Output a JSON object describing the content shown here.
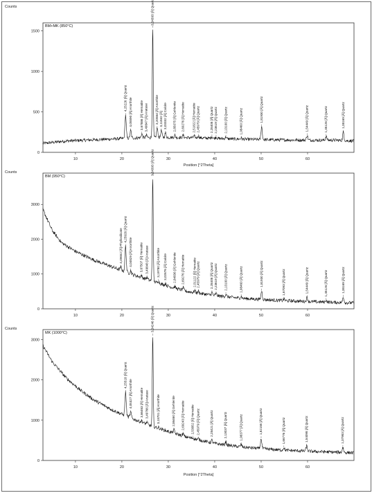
{
  "chart_data": [
    {
      "type": "line",
      "panel_label": "BM+MK (850°C)",
      "ylabel": "Counts",
      "xlabel": "Position [°2Theta]",
      "xlim": [
        3,
        70
      ],
      "ylim": [
        0,
        1600
      ],
      "yticks": [
        0,
        500,
        1000,
        1500
      ],
      "xticks": [
        10,
        20,
        30,
        40,
        50,
        60
      ],
      "baseline": [
        [
          3,
          110
        ],
        [
          8,
          140
        ],
        [
          12,
          150
        ],
        [
          16,
          160
        ],
        [
          20,
          170
        ],
        [
          24,
          180
        ],
        [
          30,
          185
        ],
        [
          36,
          180
        ],
        [
          44,
          165
        ],
        [
          52,
          155
        ],
        [
          60,
          150
        ],
        [
          66,
          150
        ],
        [
          70,
          140
        ]
      ],
      "peaks": [
        {
          "x": 20.8,
          "y": 460,
          "w": 0.14,
          "label": "4,25226 [Å]  Quartz"
        },
        {
          "x": 21.9,
          "y": 270,
          "w": 0.14,
          "label": "4,05590 [Å]  Anorthite"
        },
        {
          "x": 24.3,
          "y": 230,
          "w": 0.14,
          "label": "3,67886 [Å]  Hematite"
        },
        {
          "x": 25.3,
          "y": 210,
          "w": 0.14,
          "label": "3,49847 [Å]  Anatase"
        },
        {
          "x": 26.65,
          "y": 1540,
          "w": 0.1,
          "label": "3,34393 [Å]  Quartz"
        },
        {
          "x": 27.6,
          "y": 300,
          "w": 0.14,
          "label": "3,20584 [Å]  Anorthite"
        },
        {
          "x": 28.5,
          "y": 270,
          "w": 0.14,
          "label": "3,11842 [Å]"
        },
        {
          "x": 29.4,
          "y": 240,
          "w": 0.14,
          "label": "3,03332 [Å]  Calcite"
        },
        {
          "x": 31.4,
          "y": 210,
          "w": 0.14,
          "label": "2,85075 [Å]  Gehlenite"
        },
        {
          "x": 33.2,
          "y": 210,
          "w": 0.14,
          "label": "2,69276 [Å]  Hematite"
        },
        {
          "x": 35.6,
          "y": 200,
          "w": 0.14,
          "label": "2,51822 [Å]  Hematite"
        },
        {
          "x": 36.5,
          "y": 200,
          "w": 0.14,
          "label": "2,45979 [Å]  Quartz"
        },
        {
          "x": 39.4,
          "y": 195,
          "w": 0.14,
          "label": "2,28408 [Å]  Quartz"
        },
        {
          "x": 40.3,
          "y": 190,
          "w": 0.14,
          "label": "2,23619 [Å]  Quartz"
        },
        {
          "x": 42.4,
          "y": 190,
          "w": 0.14,
          "label": "2,13100 [Å]  Quartz"
        },
        {
          "x": 45.7,
          "y": 175,
          "w": 0.14,
          "label": "1,98460 [Å]  Quartz"
        },
        {
          "x": 50.1,
          "y": 320,
          "w": 0.14,
          "label": "1,81930 [Å]  Quartz"
        },
        {
          "x": 59.9,
          "y": 210,
          "w": 0.14,
          "label": "1,54449 [Å]  Quartz"
        },
        {
          "x": 64.0,
          "y": 200,
          "w": 0.14,
          "label": "1,45126 [Å]  Quartz"
        },
        {
          "x": 67.7,
          "y": 250,
          "w": 0.14,
          "label": "1,38169 [Å]  Quartz"
        }
      ]
    },
    {
      "type": "line",
      "panel_label": "BM (950°C)",
      "ylabel": "Counts",
      "xlabel": "",
      "xlim": [
        3,
        70
      ],
      "ylim": [
        0,
        3900
      ],
      "yticks": [
        0,
        1000,
        2000,
        3000
      ],
      "xticks": [
        10,
        20,
        30,
        40,
        50,
        60
      ],
      "baseline": [
        [
          3,
          2850
        ],
        [
          5,
          2250
        ],
        [
          7,
          1900
        ],
        [
          10,
          1650
        ],
        [
          14,
          1400
        ],
        [
          18,
          1200
        ],
        [
          22,
          1000
        ],
        [
          26,
          820
        ],
        [
          30,
          650
        ],
        [
          34,
          500
        ],
        [
          40,
          380
        ],
        [
          46,
          300
        ],
        [
          54,
          240
        ],
        [
          62,
          200
        ],
        [
          70,
          170
        ]
      ],
      "peaks": [
        {
          "x": 19.8,
          "y": 1200,
          "w": 0.14,
          "label": "4,49652 [Å]  Phyllosilicate"
        },
        {
          "x": 20.8,
          "y": 1800,
          "w": 0.14,
          "label": "4,25926 [Å]  Quartz"
        },
        {
          "x": 21.9,
          "y": 1100,
          "w": 0.14,
          "label": "4,04829 [Å]  Anorthite"
        },
        {
          "x": 24.2,
          "y": 950,
          "w": 0.14,
          "label": "3,67507 [Å]  Hematite"
        },
        {
          "x": 25.4,
          "y": 900,
          "w": 0.14,
          "label": "3,49848 [Å]  Anatase"
        },
        {
          "x": 26.65,
          "y": 3850,
          "w": 0.1,
          "label": "3,34393 [Å]  Quartz"
        },
        {
          "x": 27.9,
          "y": 800,
          "w": 0.14,
          "label": "3,19780 [Å]  Anorthite"
        },
        {
          "x": 29.4,
          "y": 720,
          "w": 0.14,
          "label": "3,02676 [Å]  Calcite"
        },
        {
          "x": 31.4,
          "y": 640,
          "w": 0.14,
          "label": "2,84836 [Å]  Gehlenite"
        },
        {
          "x": 33.2,
          "y": 600,
          "w": 0.14,
          "label": "2,69276 [Å]  Hematite"
        },
        {
          "x": 35.7,
          "y": 520,
          "w": 0.14,
          "label": "2,51122 [Å]  Hematite"
        },
        {
          "x": 36.5,
          "y": 500,
          "w": 0.14,
          "label": "2,45979 [Å]  Quartz"
        },
        {
          "x": 39.4,
          "y": 470,
          "w": 0.14,
          "label": "2,28408 [Å]  Quartz"
        },
        {
          "x": 40.3,
          "y": 440,
          "w": 0.14,
          "label": "2,23619 [Å]  Quartz"
        },
        {
          "x": 42.4,
          "y": 420,
          "w": 0.14,
          "label": "2,13100 [Å]  Quartz"
        },
        {
          "x": 45.7,
          "y": 360,
          "w": 0.14,
          "label": "1,98460 [Å]  Quartz"
        },
        {
          "x": 50.1,
          "y": 520,
          "w": 0.14,
          "label": "1,81930 [Å]  Quartz"
        },
        {
          "x": 54.9,
          "y": 280,
          "w": 0.14,
          "label": "1,67093 [Å]  Quartz"
        },
        {
          "x": 59.9,
          "y": 330,
          "w": 0.14,
          "label": "1,54449 [Å]  Quartz"
        },
        {
          "x": 64.0,
          "y": 250,
          "w": 0.14,
          "label": "1,45126 [Å]  Quartz"
        },
        {
          "x": 67.7,
          "y": 340,
          "w": 0.14,
          "label": "1,38169 [Å]  Quartz"
        }
      ]
    },
    {
      "type": "line",
      "panel_label": "MK (1000°C)",
      "ylabel": "Counts",
      "xlabel": "Position [°2Theta]",
      "xlim": [
        3,
        70
      ],
      "ylim": [
        0,
        3250
      ],
      "yticks": [
        0,
        1000,
        2000,
        3000
      ],
      "xticks": [
        10,
        20,
        30,
        40,
        50,
        60
      ],
      "baseline": [
        [
          3,
          2850
        ],
        [
          5,
          2450
        ],
        [
          8,
          2050
        ],
        [
          11,
          1750
        ],
        [
          14,
          1500
        ],
        [
          18,
          1250
        ],
        [
          22,
          1050
        ],
        [
          26,
          870
        ],
        [
          30,
          720
        ],
        [
          34,
          580
        ],
        [
          40,
          420
        ],
        [
          46,
          330
        ],
        [
          54,
          260
        ],
        [
          62,
          220
        ],
        [
          70,
          190
        ]
      ],
      "peaks": [
        {
          "x": 20.8,
          "y": 1700,
          "w": 0.14,
          "label": "4,25518 [Å]  Quartz"
        },
        {
          "x": 21.9,
          "y": 1200,
          "w": 0.14,
          "label": "4,05327 [Å]  Anorthite"
        },
        {
          "x": 24.3,
          "y": 980,
          "w": 0.14,
          "label": "3,66463 [Å]  Hematite"
        },
        {
          "x": 25.4,
          "y": 950,
          "w": 0.14,
          "label": "3,49766 [Å]  Anatase"
        },
        {
          "x": 26.65,
          "y": 3100,
          "w": 0.1,
          "label": "3,34246 [Å]  Quartz"
        },
        {
          "x": 27.9,
          "y": 820,
          "w": 0.14,
          "label": "3,18701 [Å]  Anorthite"
        },
        {
          "x": 31.2,
          "y": 760,
          "w": 0.14,
          "label": "2,86460 [Å]  Gehlenite"
        },
        {
          "x": 33.2,
          "y": 660,
          "w": 0.14,
          "label": "2,69243 [Å]  Hematite"
        },
        {
          "x": 35.3,
          "y": 560,
          "w": 0.14,
          "label": "2,53852 [Å]  Hematite"
        },
        {
          "x": 36.5,
          "y": 540,
          "w": 0.14,
          "label": "2,45979 [Å]  Quartz"
        },
        {
          "x": 39.4,
          "y": 500,
          "w": 0.14,
          "label": "2,28421 [Å]  Quartz"
        },
        {
          "x": 42.4,
          "y": 460,
          "w": 0.14,
          "label": "2,13037 [Å]  Quartz"
        },
        {
          "x": 45.7,
          "y": 400,
          "w": 0.14,
          "label": "1,98377 [Å]  Quartz"
        },
        {
          "x": 50.0,
          "y": 550,
          "w": 0.14,
          "label": "1,82158 [Å]  Quartz"
        },
        {
          "x": 54.9,
          "y": 320,
          "w": 0.14,
          "label": "1,66776 [Å]  Quartz"
        },
        {
          "x": 59.8,
          "y": 360,
          "w": 0.14,
          "label": "1,54098 [Å]  Quartz"
        },
        {
          "x": 67.6,
          "y": 330,
          "w": 0.14,
          "label": "1,37983 [Å]  Quartz"
        }
      ]
    }
  ]
}
